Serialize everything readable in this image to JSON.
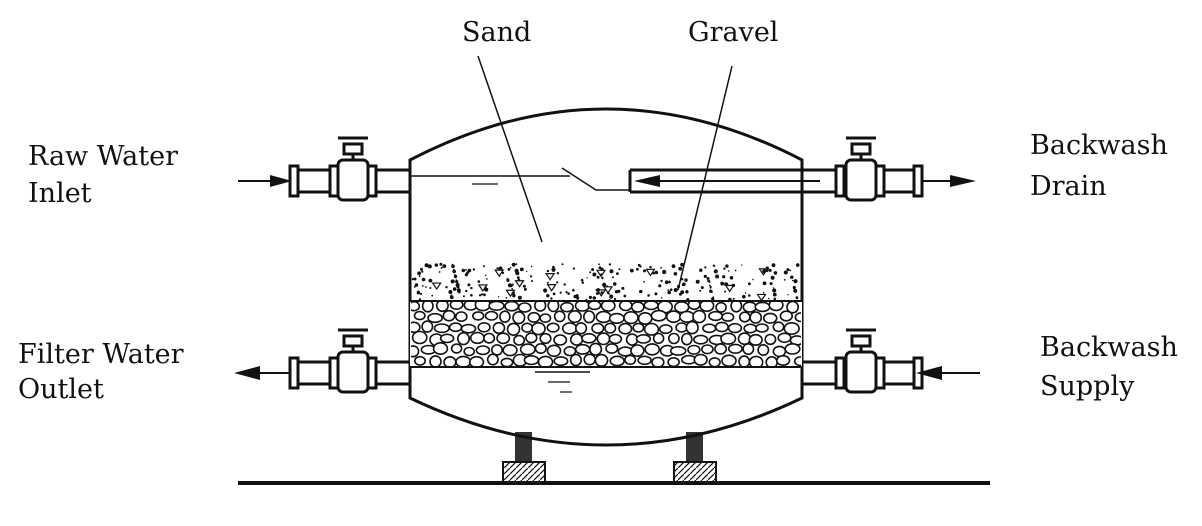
{
  "labels": {
    "sand": "Sand",
    "gravel": "Gravel",
    "raw_water_line1": "Raw Water",
    "raw_water_line2": "Inlet",
    "backwash_drain_line1": "Backwash",
    "backwash_drain_line2": "Drain",
    "filter_water_line1": "Filter Water",
    "filter_water_line2": "Outlet",
    "backwash_supply_line1": "Backwash",
    "backwash_supply_line2": "Supply"
  },
  "colors": {
    "ink": "#111111",
    "background": "#ffffff"
  }
}
